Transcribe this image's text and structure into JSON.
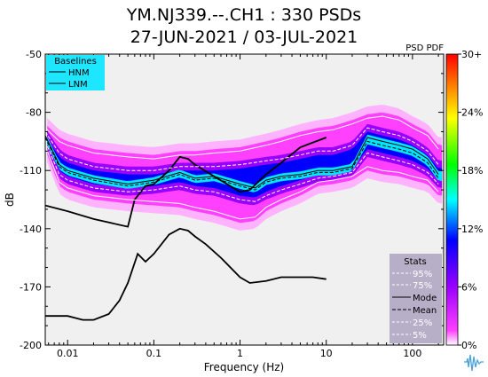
{
  "header": {
    "title_line1": "YM.NJ339.--.CH1 : 330 PSDs",
    "title_line2": "27-JUN-2021 / 03-JUL-2021"
  },
  "chart_data": {
    "type": "heatmap",
    "label": "PSD PDF",
    "xlabel": "Frequency (Hz)",
    "ylabel": "dB",
    "xscale": "log",
    "xlim": [
      0.0055,
      230
    ],
    "ylim": [
      -200,
      -50
    ],
    "grid": false,
    "x_ticks": [
      {
        "value": 0.01,
        "label": "0.01"
      },
      {
        "value": 0.1,
        "label": "0.1"
      },
      {
        "value": 1,
        "label": "1"
      },
      {
        "value": 10,
        "label": "10"
      },
      {
        "value": 100,
        "label": "100"
      }
    ],
    "y_ticks": [
      {
        "value": -50,
        "label": "-50"
      },
      {
        "value": -80,
        "label": "-80"
      },
      {
        "value": -110,
        "label": "-110"
      },
      {
        "value": -140,
        "label": "-140"
      },
      {
        "value": -170,
        "label": "-170"
      },
      {
        "value": -200,
        "label": "-200"
      }
    ],
    "colorbar": {
      "ticks": [
        {
          "value": 0,
          "label": "0%"
        },
        {
          "value": 6,
          "label": "6%"
        },
        {
          "value": 12,
          "label": "12%"
        },
        {
          "value": 18,
          "label": "18%"
        },
        {
          "value": 24,
          "label": "24%"
        },
        {
          "value": 30,
          "label": "30+"
        }
      ],
      "colors": [
        "#ffffff",
        "#ff40ff",
        "#9a00ff",
        "#0000ff",
        "#00ffff",
        "#00ff00",
        "#ffff00",
        "#ff0000"
      ]
    },
    "baselines_legend": {
      "title": "Baselines",
      "entries": [
        "HNM",
        "LNM"
      ],
      "position": "top-left",
      "color": "#1ee6ff"
    },
    "stats_legend": {
      "title": "Stats",
      "entries": [
        "95%",
        "75%",
        "Mode",
        "Mean",
        "25%",
        "5%"
      ],
      "position": "bottom-right",
      "color": "#b7aec7"
    },
    "series": [
      {
        "name": "HNM",
        "x": [
          0.0055,
          0.01,
          0.02,
          0.05,
          0.06,
          0.08,
          0.1,
          0.15,
          0.2,
          0.25,
          0.3,
          0.5,
          1,
          1.3,
          2,
          3,
          5,
          10
        ],
        "y": [
          -128,
          -131,
          -135,
          -139,
          -125,
          -118,
          -117,
          -110,
          -103,
          -104,
          -107,
          -113,
          -121,
          -120,
          -112,
          -106,
          -98,
          -93
        ]
      },
      {
        "name": "LNM",
        "x": [
          0.0055,
          0.01,
          0.015,
          0.02,
          0.03,
          0.04,
          0.05,
          0.065,
          0.08,
          0.1,
          0.15,
          0.2,
          0.25,
          0.3,
          0.4,
          0.6,
          1,
          1.3,
          2,
          3,
          5,
          7,
          10
        ],
        "y": [
          -185,
          -185,
          -187,
          -187,
          -184,
          -177,
          -168,
          -153,
          -157,
          -153,
          -143,
          -140,
          -141,
          -144,
          -148,
          -155,
          -165,
          -168,
          -167,
          -165,
          -165,
          -165,
          -166
        ]
      },
      {
        "name": "95%",
        "x": [
          0.0055,
          0.008,
          0.01,
          0.02,
          0.05,
          0.1,
          0.2,
          0.3,
          0.5,
          1,
          2,
          3,
          5,
          8,
          12,
          20,
          30,
          45,
          70,
          100,
          150,
          200
        ],
        "y": [
          -88,
          -95,
          -97,
          -101,
          -103,
          -104,
          -102,
          -102,
          -101,
          -100,
          -97,
          -95,
          -92,
          -90,
          -89,
          -86,
          -83,
          -82,
          -84,
          -88,
          -92,
          -99
        ]
      },
      {
        "name": "75%",
        "x": [
          0.0055,
          0.008,
          0.01,
          0.02,
          0.05,
          0.1,
          0.2,
          0.3,
          0.5,
          1,
          2,
          3,
          5,
          8,
          12,
          20,
          30,
          45,
          70,
          100,
          150,
          200
        ],
        "y": [
          -90,
          -101,
          -104,
          -108,
          -110,
          -110,
          -108,
          -108,
          -108,
          -107,
          -105,
          -104,
          -102,
          -100,
          -100,
          -97,
          -88,
          -90,
          -92,
          -95,
          -100,
          -107
        ]
      },
      {
        "name": "Mode",
        "x": [
          0.0055,
          0.008,
          0.01,
          0.02,
          0.05,
          0.1,
          0.2,
          0.3,
          0.5,
          1,
          1.5,
          2,
          3,
          5,
          8,
          12,
          20,
          30,
          45,
          70,
          100,
          150,
          200
        ],
        "y": [
          -92,
          -107,
          -110,
          -114,
          -117,
          -115,
          -111,
          -114,
          -113,
          -117,
          -119,
          -115,
          -113,
          -112,
          -110,
          -110,
          -108,
          -93,
          -95,
          -97,
          -99,
          -104,
          -112
        ]
      },
      {
        "name": "Mean",
        "x": [
          0.0055,
          0.008,
          0.01,
          0.02,
          0.05,
          0.1,
          0.2,
          0.3,
          0.5,
          1,
          1.5,
          2,
          3,
          5,
          8,
          12,
          20,
          30,
          45,
          70,
          100,
          150,
          200
        ],
        "y": [
          -93,
          -108,
          -111,
          -115,
          -118,
          -116,
          -112,
          -115,
          -114,
          -118,
          -120,
          -116,
          -114,
          -113,
          -111,
          -111,
          -109,
          -95,
          -97,
          -99,
          -101,
          -106,
          -114
        ]
      },
      {
        "name": "25%",
        "x": [
          0.0055,
          0.008,
          0.01,
          0.02,
          0.05,
          0.1,
          0.2,
          0.3,
          0.5,
          1,
          1.5,
          2,
          3,
          5,
          8,
          12,
          20,
          30,
          45,
          70,
          100,
          150,
          200
        ],
        "y": [
          -95,
          -112,
          -115,
          -119,
          -121,
          -120,
          -118,
          -120,
          -121,
          -125,
          -126,
          -123,
          -120,
          -117,
          -114,
          -113,
          -111,
          -101,
          -103,
          -105,
          -107,
          -111,
          -117
        ]
      },
      {
        "name": "5%",
        "x": [
          0.0055,
          0.008,
          0.01,
          0.02,
          0.05,
          0.1,
          0.2,
          0.3,
          0.5,
          1,
          1.5,
          2,
          3,
          5,
          8,
          12,
          20,
          30,
          45,
          70,
          100,
          150,
          200
        ],
        "y": [
          -97,
          -116,
          -119,
          -123,
          -125,
          -126,
          -127,
          -129,
          -131,
          -135,
          -134,
          -129,
          -125,
          -121,
          -116,
          -115,
          -113,
          -108,
          -110,
          -111,
          -113,
          -115,
          -121
        ]
      }
    ]
  }
}
